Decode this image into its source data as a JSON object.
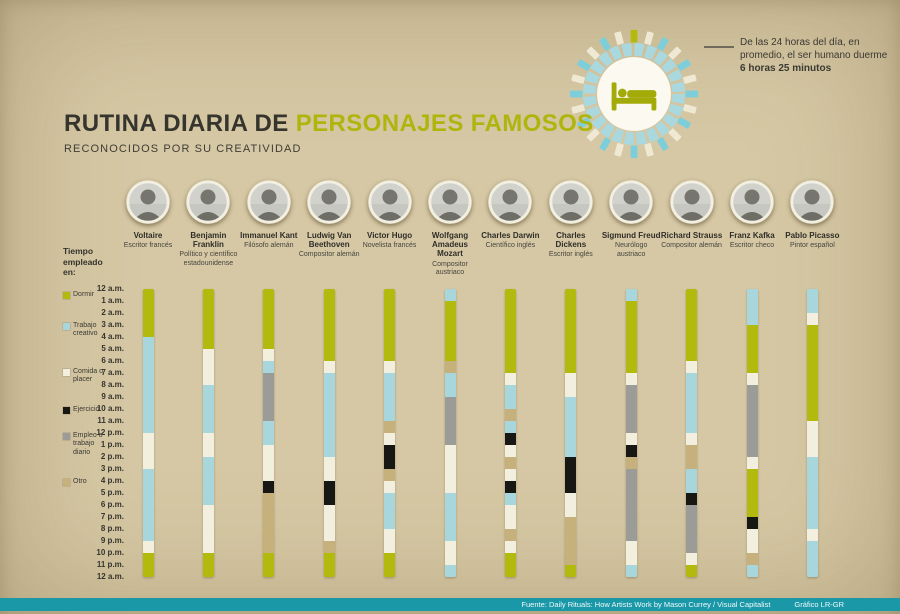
{
  "header": {
    "title_prefix": "RUTINA DIARIA DE ",
    "title_highlight": "PERSONAJES FAMOSOS",
    "subtitle": "RECONOCIDOS POR SU CREATIVIDAD"
  },
  "sleep_note": {
    "text": "De las 24 horas del día, en promedio, el ser humano duerme",
    "highlight": "6 horas 25 minutos"
  },
  "legend": {
    "title": "Tiempo empleado en:",
    "items": [
      {
        "key": "S",
        "label": "Dormir"
      },
      {
        "key": "C",
        "label": "Trabajo creativo"
      },
      {
        "key": "F",
        "label": "Comida o placer"
      },
      {
        "key": "E",
        "label": "Ejercicio"
      },
      {
        "key": "J",
        "label": "Empleo o trabajo diario"
      },
      {
        "key": "O",
        "label": "Otro"
      }
    ]
  },
  "activity_colors": {
    "S": "#b2ba0e",
    "C": "#a7d6dd",
    "F": "#f3efdf",
    "E": "#171714",
    "J": "#9b9b97",
    "O": "#c6b17c"
  },
  "clock": {
    "tick_teal": "#7ccfda",
    "tick_cream": "#efe9d3",
    "tick_accent": "#b2ba0e",
    "ring": "#a9d8df",
    "center": "#fbf9f0",
    "bed": "#a3ab08"
  },
  "people": [
    {
      "name": "Voltaire",
      "role": "Escritor francés"
    },
    {
      "name": "Benjamin Franklin",
      "role": "Político y científico estadounidense"
    },
    {
      "name": "Immanuel Kant",
      "role": "Filósofo alemán"
    },
    {
      "name": "Ludwig Van Beethoven",
      "role": "Compositor alemán"
    },
    {
      "name": "Victor Hugo",
      "role": "Novelista francés"
    },
    {
      "name": "Wolfgang Amadeus Mozart",
      "role": "Compositor austriaco"
    },
    {
      "name": "Charles Darwin",
      "role": "Científico inglés"
    },
    {
      "name": "Charles Dickens",
      "role": "Escritor inglés"
    },
    {
      "name": "Sigmund Freud",
      "role": "Neurólogo austriaco"
    },
    {
      "name": "Richard Strauss",
      "role": "Compositor alemán"
    },
    {
      "name": "Franz Kafka",
      "role": "Escritor checo"
    },
    {
      "name": "Pablo Picasso",
      "role": "Pintor español"
    }
  ],
  "chart_data": {
    "type": "heatmap",
    "title": "Rutina diaria de personajes famosos: actividad por hora (12 a.m. a 12 a.m.)",
    "x_categories": [
      "Voltaire",
      "Benjamin Franklin",
      "Immanuel Kant",
      "Ludwig Van Beethoven",
      "Victor Hugo",
      "Wolfgang Amadeus Mozart",
      "Charles Darwin",
      "Charles Dickens",
      "Sigmund Freud",
      "Richard Strauss",
      "Franz Kafka",
      "Pablo Picasso"
    ],
    "y_categories": [
      "12 a.m.",
      "1 a.m.",
      "2 a.m.",
      "3 a.m.",
      "4 a.m.",
      "5 a.m.",
      "6 a.m.",
      "7 a.m.",
      "8 a.m.",
      "9 a.m.",
      "10 a.m.",
      "11 a.m.",
      "12 p.m.",
      "1 p.m.",
      "2 p.m.",
      "3 p.m.",
      "4 p.m.",
      "5 p.m.",
      "6 p.m.",
      "7 p.m.",
      "8 p.m.",
      "9 p.m.",
      "10 p.m.",
      "11 p.m.",
      "12 a.m."
    ],
    "legend_key": {
      "S": "Dormir",
      "C": "Trabajo creativo",
      "F": "Comida o placer",
      "E": "Ejercicio",
      "J": "Empleo o trabajo diario",
      "O": "Otro"
    },
    "series": [
      {
        "name": "Voltaire",
        "schedule": [
          "S",
          "S",
          "S",
          "S",
          "C",
          "C",
          "C",
          "C",
          "C",
          "C",
          "C",
          "C",
          "F",
          "F",
          "F",
          "C",
          "C",
          "C",
          "C",
          "C",
          "C",
          "F",
          "S",
          "S"
        ]
      },
      {
        "name": "Benjamin Franklin",
        "schedule": [
          "S",
          "S",
          "S",
          "S",
          "S",
          "F",
          "F",
          "F",
          "C",
          "C",
          "C",
          "C",
          "F",
          "F",
          "C",
          "C",
          "C",
          "C",
          "F",
          "F",
          "F",
          "F",
          "S",
          "S"
        ]
      },
      {
        "name": "Immanuel Kant",
        "schedule": [
          "S",
          "S",
          "S",
          "S",
          "S",
          "F",
          "C",
          "J",
          "J",
          "J",
          "J",
          "C",
          "C",
          "F",
          "F",
          "F",
          "E",
          "O",
          "O",
          "O",
          "O",
          "O",
          "S",
          "S"
        ]
      },
      {
        "name": "Ludwig Van Beethoven",
        "schedule": [
          "S",
          "S",
          "S",
          "S",
          "S",
          "S",
          "F",
          "C",
          "C",
          "C",
          "C",
          "C",
          "C",
          "C",
          "F",
          "F",
          "E",
          "E",
          "F",
          "F",
          "F",
          "O",
          "S",
          "S"
        ]
      },
      {
        "name": "Victor Hugo",
        "schedule": [
          "S",
          "S",
          "S",
          "S",
          "S",
          "S",
          "F",
          "C",
          "C",
          "C",
          "C",
          "O",
          "F",
          "E",
          "E",
          "O",
          "F",
          "C",
          "C",
          "C",
          "F",
          "F",
          "S",
          "S"
        ]
      },
      {
        "name": "Wolfgang Amadeus Mozart",
        "schedule": [
          "C",
          "S",
          "S",
          "S",
          "S",
          "S",
          "O",
          "C",
          "C",
          "J",
          "J",
          "J",
          "J",
          "F",
          "F",
          "F",
          "F",
          "C",
          "C",
          "C",
          "C",
          "F",
          "F",
          "C"
        ]
      },
      {
        "name": "Charles Darwin",
        "schedule": [
          "S",
          "S",
          "S",
          "S",
          "S",
          "S",
          "S",
          "F",
          "C",
          "C",
          "O",
          "C",
          "E",
          "F",
          "O",
          "F",
          "E",
          "C",
          "F",
          "F",
          "O",
          "F",
          "S",
          "S"
        ]
      },
      {
        "name": "Charles Dickens",
        "schedule": [
          "S",
          "S",
          "S",
          "S",
          "S",
          "S",
          "S",
          "F",
          "F",
          "C",
          "C",
          "C",
          "C",
          "C",
          "E",
          "E",
          "E",
          "F",
          "F",
          "O",
          "O",
          "O",
          "O",
          "S"
        ]
      },
      {
        "name": "Sigmund Freud",
        "schedule": [
          "C",
          "S",
          "S",
          "S",
          "S",
          "S",
          "S",
          "F",
          "J",
          "J",
          "J",
          "J",
          "F",
          "E",
          "O",
          "J",
          "J",
          "J",
          "J",
          "J",
          "J",
          "F",
          "F",
          "C"
        ]
      },
      {
        "name": "Richard Strauss",
        "schedule": [
          "S",
          "S",
          "S",
          "S",
          "S",
          "S",
          "F",
          "C",
          "C",
          "C",
          "C",
          "C",
          "F",
          "O",
          "O",
          "C",
          "C",
          "E",
          "J",
          "J",
          "J",
          "J",
          "F",
          "S"
        ]
      },
      {
        "name": "Franz Kafka",
        "schedule": [
          "C",
          "C",
          "C",
          "S",
          "S",
          "S",
          "S",
          "F",
          "J",
          "J",
          "J",
          "J",
          "J",
          "J",
          "F",
          "S",
          "S",
          "S",
          "S",
          "E",
          "F",
          "F",
          "O",
          "C"
        ]
      },
      {
        "name": "Pablo Picasso",
        "schedule": [
          "C",
          "C",
          "F",
          "S",
          "S",
          "S",
          "S",
          "S",
          "S",
          "S",
          "S",
          "F",
          "F",
          "F",
          "C",
          "C",
          "C",
          "C",
          "C",
          "C",
          "F",
          "C",
          "C",
          "C"
        ]
      }
    ]
  },
  "footer": {
    "source": "Fuente: Daily Rituals: How Artists Work by Mason Currey / Visual Capitalist",
    "credit": "Gráfico LR-GR"
  },
  "colors": {
    "background": "#d6c8a4",
    "accent_olive": "#aeb50c",
    "footer_bar": "#1a98a8"
  }
}
